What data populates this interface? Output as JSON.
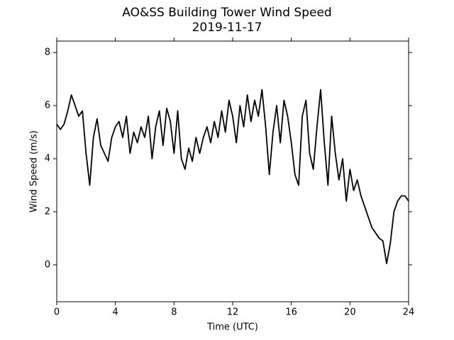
{
  "chart_data": {
    "type": "line",
    "title": "AO&SS Building Tower Wind Speed",
    "subtitle": "2019-11-17",
    "xlabel": "Time (UTC)",
    "ylabel": "Wind Speed (m/s)",
    "x": [
      0,
      0.25,
      0.5,
      0.75,
      1,
      1.25,
      1.5,
      1.75,
      2,
      2.25,
      2.5,
      2.75,
      3,
      3.25,
      3.5,
      3.75,
      4,
      4.25,
      4.5,
      4.75,
      5,
      5.25,
      5.5,
      5.75,
      6,
      6.25,
      6.5,
      6.75,
      7,
      7.25,
      7.5,
      7.75,
      8,
      8.25,
      8.5,
      8.75,
      9,
      9.25,
      9.5,
      9.75,
      10,
      10.25,
      10.5,
      10.75,
      11,
      11.25,
      11.5,
      11.75,
      12,
      12.25,
      12.5,
      12.75,
      13,
      13.25,
      13.5,
      13.75,
      14,
      14.25,
      14.5,
      14.75,
      15,
      15.25,
      15.5,
      15.75,
      16,
      16.25,
      16.5,
      16.75,
      17,
      17.25,
      17.5,
      17.75,
      18,
      18.25,
      18.5,
      18.75,
      19,
      19.25,
      19.5,
      19.75,
      20,
      20.25,
      20.5,
      20.75,
      21,
      21.25,
      21.5,
      21.75,
      22,
      22.25,
      22.5,
      22.75,
      23,
      23.25,
      23.5,
      23.75,
      24
    ],
    "series": [
      {
        "name": "Wind Speed",
        "color": "#000000",
        "values": [
          5.3,
          5.1,
          5.3,
          5.8,
          6.4,
          6.0,
          5.6,
          5.8,
          4.2,
          3.0,
          4.8,
          5.5,
          4.5,
          4.2,
          3.9,
          4.8,
          5.2,
          5.4,
          4.8,
          5.6,
          4.2,
          5.0,
          4.6,
          5.2,
          4.8,
          5.6,
          4.0,
          5.2,
          5.8,
          4.5,
          5.9,
          5.4,
          4.2,
          5.8,
          4.0,
          3.6,
          4.4,
          3.9,
          4.8,
          4.2,
          4.8,
          5.2,
          4.6,
          5.4,
          4.8,
          5.8,
          5.0,
          6.2,
          5.6,
          4.6,
          6.0,
          5.2,
          6.4,
          5.4,
          6.2,
          5.6,
          6.6,
          5.2,
          3.4,
          5.0,
          6.0,
          4.6,
          6.2,
          5.6,
          4.6,
          3.4,
          3.0,
          5.6,
          6.2,
          4.2,
          3.6,
          5.2,
          6.6,
          4.6,
          3.0,
          5.6,
          4.2,
          3.2,
          4.0,
          2.4,
          3.6,
          2.8,
          3.2,
          2.6,
          2.2,
          1.8,
          1.4,
          1.2,
          1.0,
          0.9,
          0.05,
          0.8,
          2.0,
          2.4,
          2.6,
          2.6,
          2.4
        ]
      }
    ],
    "xlim": [
      0,
      24
    ],
    "xticks": [
      0,
      4,
      8,
      12,
      16,
      20,
      24
    ],
    "ylim": [
      -1.39,
      8.43
    ],
    "yticks": [
      0,
      2,
      4,
      6,
      8
    ],
    "grid": false
  }
}
